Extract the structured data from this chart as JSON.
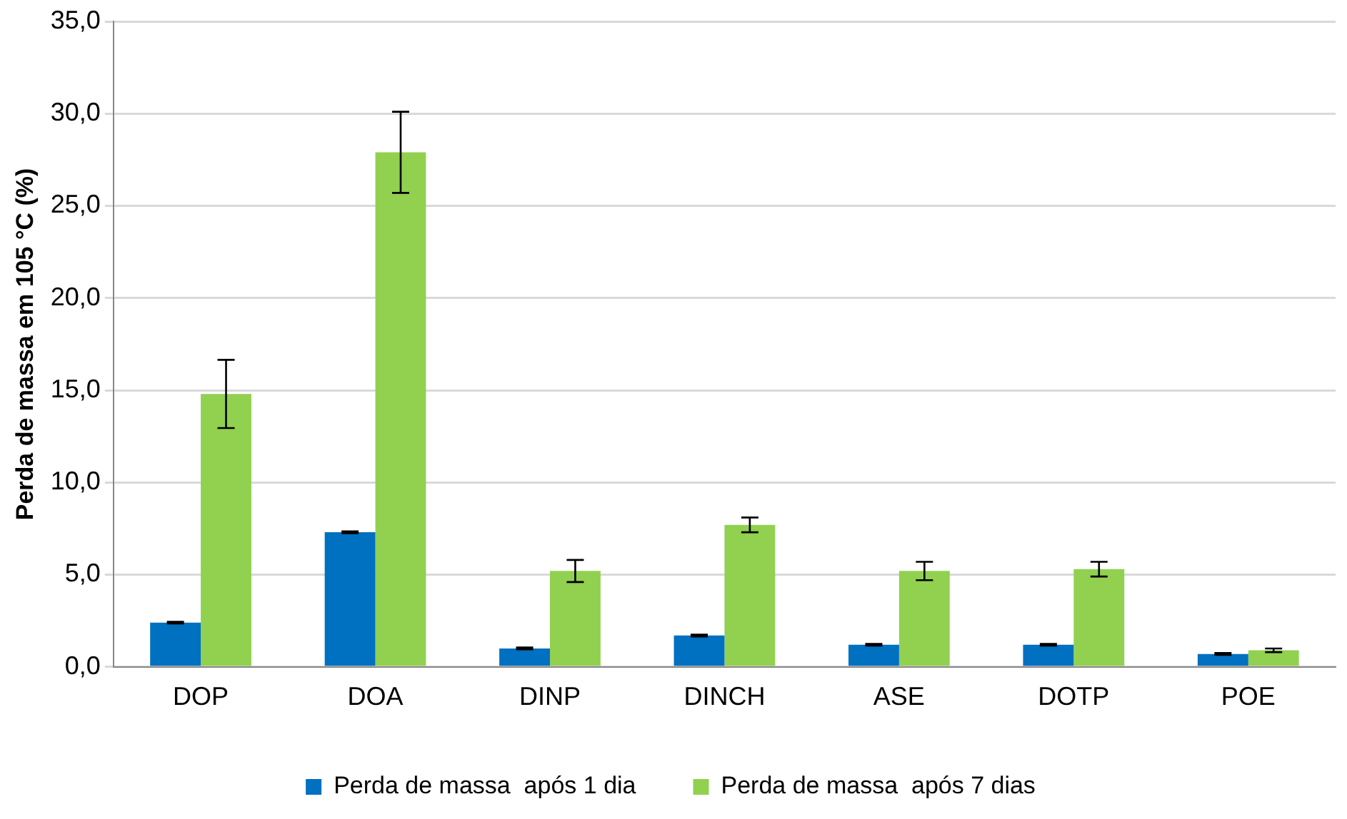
{
  "chart_data": {
    "type": "bar",
    "ylabel": "Perda de massa em 105 °C (%)",
    "categories": [
      "DOP",
      "DOA",
      "DINP",
      "DINCH",
      "ASE",
      "DOTP",
      "POE"
    ],
    "series": [
      {
        "name": "Perda de massa  após 1 dia",
        "color": "#0070c0",
        "values": [
          2.4,
          7.3,
          1.0,
          1.7,
          1.2,
          1.2,
          0.7
        ],
        "errors": [
          0.05,
          0.05,
          0.05,
          0.05,
          0.05,
          0.05,
          0.05
        ]
      },
      {
        "name": "Perda de massa  após 7 dias",
        "color": "#92d050",
        "values": [
          14.8,
          27.9,
          5.2,
          7.7,
          5.2,
          5.3,
          0.9
        ],
        "errors": [
          1.85,
          2.2,
          0.6,
          0.4,
          0.5,
          0.4,
          0.1
        ]
      }
    ],
    "ylim": [
      0,
      35
    ],
    "yticks": [
      {
        "value": 0,
        "label": "0,0"
      },
      {
        "value": 5,
        "label": "5,0"
      },
      {
        "value": 10,
        "label": "10,0"
      },
      {
        "value": 15,
        "label": "15,0"
      },
      {
        "value": 20,
        "label": "20,0"
      },
      {
        "value": 25,
        "label": "25,0"
      },
      {
        "value": 30,
        "label": "30,0"
      },
      {
        "value": 35,
        "label": "35,0"
      }
    ],
    "grid": "y",
    "legend": "bottom"
  }
}
